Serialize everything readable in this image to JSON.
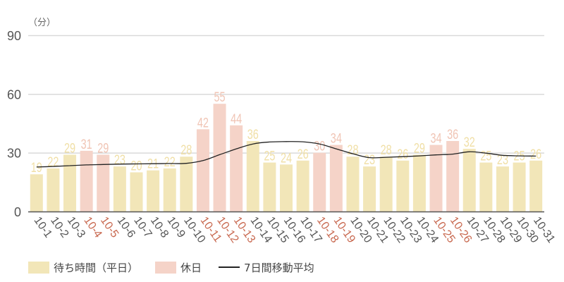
{
  "chart_data": {
    "type": "bar",
    "title": "",
    "unit_label": "（分）",
    "xlabel": "",
    "ylabel": "分",
    "ylim": [
      0,
      90
    ],
    "yticks": [
      0,
      30,
      60,
      90
    ],
    "grid": true,
    "legend_position": "bottom-left",
    "categories": [
      "10-1",
      "10-2",
      "10-3",
      "10-4",
      "10-5",
      "10-6",
      "10-7",
      "10-8",
      "10-9",
      "10-10",
      "10-11",
      "10-12",
      "10-13",
      "10-14",
      "10-15",
      "10-16",
      "10-17",
      "10-18",
      "10-19",
      "10-20",
      "10-21",
      "10-22",
      "10-23",
      "10-24",
      "10-25",
      "10-26",
      "10-27",
      "10-28",
      "10-29",
      "10-30",
      "10-31"
    ],
    "values": [
      19,
      22,
      29,
      31,
      29,
      23,
      20,
      21,
      22,
      28,
      42,
      55,
      44,
      36,
      25,
      24,
      26,
      30,
      34,
      28,
      23,
      28,
      26,
      29,
      34,
      36,
      32,
      25,
      23,
      25,
      26
    ],
    "day_type": [
      "weekday",
      "weekday",
      "weekday",
      "holiday",
      "holiday",
      "weekday",
      "weekday",
      "weekday",
      "weekday",
      "weekday",
      "holiday",
      "holiday",
      "holiday",
      "weekday",
      "weekday",
      "weekday",
      "weekday",
      "holiday",
      "holiday",
      "weekday",
      "weekday",
      "weekday",
      "weekday",
      "weekday",
      "holiday",
      "holiday",
      "weekday",
      "weekday",
      "weekday",
      "weekday",
      "weekday"
    ],
    "series": [
      {
        "name": "待ち時間（平日）",
        "type": "bar",
        "color": "#f2e6b8"
      },
      {
        "name": "休日",
        "type": "bar",
        "color": "#f5d3c8"
      },
      {
        "name": "7日間移動平均",
        "type": "line",
        "color": "#222222",
        "values": [
          22.7,
          23.0,
          23.4,
          23.8,
          24.0,
          24.2,
          24.3,
          24.4,
          24.5,
          24.6,
          26.0,
          29.0,
          32.0,
          34.5,
          35.5,
          35.7,
          35.6,
          34.5,
          32.0,
          29.5,
          27.5,
          27.7,
          28.0,
          28.4,
          28.9,
          29.3,
          30.5,
          29.8,
          28.7,
          28.4,
          28.3
        ]
      }
    ],
    "colors": {
      "weekday_bar": "#f2e6b8",
      "holiday_bar": "#f5d3c8",
      "weekday_label": "#f0dfa6",
      "holiday_label": "#f0c4b4",
      "weekday_tick": "#555555",
      "holiday_tick": "#c8684f",
      "grid": "#d9d9d9",
      "axis": "#555555",
      "line": "#222222"
    }
  },
  "legend": {
    "weekday": "待ち時間（平日）",
    "holiday": "休日",
    "moving_average": "7日間移動平均"
  }
}
